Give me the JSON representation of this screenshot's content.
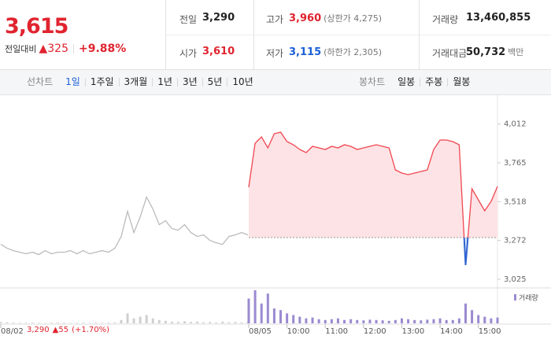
{
  "header": {
    "price": "3,615",
    "change_label": "전일대비",
    "change": "▲325",
    "change_pct": "+9.88%",
    "stats": [
      [
        {
          "label": "전일",
          "value": "3,290",
          "color": "#222"
        },
        {
          "label": "고가",
          "value": "3,960",
          "note": "(상한가 4,275)",
          "color": "#e0242f"
        },
        {
          "label": "거래량",
          "value": "13,460,855",
          "color": "#222"
        }
      ],
      [
        {
          "label": "시가",
          "value": "3,610",
          "color": "#e0242f"
        },
        {
          "label": "저가",
          "value": "3,115",
          "note": "(하한가 2,305)",
          "color": "#1a5fd6"
        },
        {
          "label": "거래대금",
          "value": "50,732",
          "note": "백만",
          "color": "#222"
        }
      ]
    ]
  },
  "tabs": {
    "line_label": "선차트",
    "line_items": [
      "1일",
      "1주일",
      "3개월",
      "1년",
      "3년",
      "5년",
      "10년"
    ],
    "active": 0,
    "candle_label": "봉차트",
    "candle_items": [
      "일봉",
      "주봉",
      "월봉"
    ]
  },
  "footer": {
    "price": "3,290",
    "change": "▲55",
    "change_pct": "(+1.70%)"
  },
  "chart_data": {
    "type": "line",
    "categories": [
      "08/02",
      null,
      null,
      null,
      null,
      null,
      null,
      null,
      null,
      null,
      null,
      null,
      null,
      null,
      null,
      null,
      null,
      null,
      null,
      null,
      null,
      null,
      null,
      null,
      null,
      null,
      null,
      null,
      null,
      null,
      null,
      null,
      null,
      null,
      null,
      null,
      null,
      null,
      null,
      null,
      "08/05",
      null,
      null,
      null,
      null,
      null,
      "10:00",
      null,
      null,
      null,
      null,
      null,
      "11:00",
      null,
      null,
      null,
      null,
      null,
      "12:00",
      null,
      null,
      null,
      null,
      null,
      "13:00",
      null,
      null,
      null,
      null,
      null,
      "14:00",
      null,
      null,
      null,
      null,
      null,
      "15:00",
      null,
      null,
      null
    ],
    "series": [
      {
        "name": "08/02",
        "color": "#bbbbbb",
        "values": [
          3247,
          3222,
          3207,
          3197,
          3187,
          3197,
          3182,
          3207,
          3187,
          3197,
          3197,
          3207,
          3187,
          3207,
          3187,
          3197,
          3207,
          3197,
          3222,
          3297,
          3457,
          3322,
          3422,
          3547,
          3472,
          3372,
          3397,
          3347,
          3337,
          3372,
          3322,
          3297,
          3307,
          3272,
          3257,
          3247,
          3297,
          3307,
          3322,
          3307,
          null,
          null,
          null,
          null,
          null,
          null,
          null,
          null,
          null,
          null,
          null,
          null,
          null,
          null,
          null,
          null,
          null,
          null,
          null,
          null,
          null,
          null,
          null,
          null,
          null,
          null,
          null,
          null,
          null,
          null,
          null,
          null,
          null,
          null,
          null,
          null,
          null,
          null,
          null,
          null
        ]
      },
      {
        "name": "08/05",
        "color": "#f0464f",
        "values": [
          null,
          null,
          null,
          null,
          null,
          null,
          null,
          null,
          null,
          null,
          null,
          null,
          null,
          null,
          null,
          null,
          null,
          null,
          null,
          null,
          null,
          null,
          null,
          null,
          null,
          null,
          null,
          null,
          null,
          null,
          null,
          null,
          null,
          null,
          null,
          null,
          null,
          null,
          null,
          null,
          3610,
          3890,
          3930,
          3860,
          3950,
          3960,
          3900,
          3880,
          3850,
          3830,
          3870,
          3860,
          3850,
          3870,
          3860,
          3880,
          3870,
          3850,
          3860,
          3870,
          3880,
          3870,
          3860,
          3720,
          3700,
          3690,
          3700,
          3710,
          3720,
          3850,
          3910,
          3910,
          3900,
          3880,
          3115,
          3600,
          3530,
          3460,
          3520,
          3615
        ]
      }
    ],
    "below_color": "#2f64d0",
    "fill_color": "#fde3e5",
    "baseline": 3290,
    "volume": {
      "label": "거래량",
      "series": [
        {
          "color": "#cfcfcf",
          "values": [
            8000,
            5000,
            4000,
            3000,
            3000,
            4000,
            3000,
            2000,
            3000,
            4000,
            3000,
            2000,
            3000,
            3000,
            2000,
            4000,
            3000,
            4000,
            5000,
            20000,
            60000,
            30000,
            40000,
            50000,
            30000,
            20000,
            15000,
            10000,
            8000,
            12000,
            8000,
            10000,
            6000,
            8000,
            5000,
            10000,
            6000,
            8000,
            5000,
            9000,
            null,
            null,
            null,
            null,
            null,
            null,
            null,
            null,
            null,
            null,
            null,
            null,
            null,
            null,
            null,
            null,
            null,
            null,
            null,
            null,
            null,
            null,
            null,
            null,
            null,
            null,
            null,
            null,
            null,
            null,
            null,
            null,
            null,
            null,
            null,
            null,
            null,
            null,
            null,
            null
          ]
        },
        {
          "color": "#9b8ad0",
          "values": [
            null,
            null,
            null,
            null,
            null,
            null,
            null,
            null,
            null,
            null,
            null,
            null,
            null,
            null,
            null,
            null,
            null,
            null,
            null,
            null,
            null,
            null,
            null,
            null,
            null,
            null,
            null,
            null,
            null,
            null,
            null,
            null,
            null,
            null,
            null,
            null,
            null,
            null,
            null,
            null,
            150000,
            200000,
            120000,
            180000,
            90000,
            80000,
            60000,
            50000,
            40000,
            30000,
            35000,
            25000,
            20000,
            25000,
            30000,
            20000,
            25000,
            20000,
            18000,
            22000,
            20000,
            18000,
            15000,
            20000,
            30000,
            25000,
            20000,
            18000,
            22000,
            25000,
            30000,
            20000,
            20000,
            30000,
            120000,
            80000,
            50000,
            40000,
            30000,
            35000
          ]
        }
      ]
    },
    "ylim": [
      2975,
      4160
    ],
    "yticks": [
      {
        "value": 3025,
        "label": "3,025"
      },
      {
        "value": 3272,
        "label": "3,272"
      },
      {
        "value": 3518,
        "label": "3,518"
      },
      {
        "value": 3765,
        "label": "3,765"
      },
      {
        "value": 4012,
        "label": "4,012"
      }
    ],
    "grid": false
  }
}
